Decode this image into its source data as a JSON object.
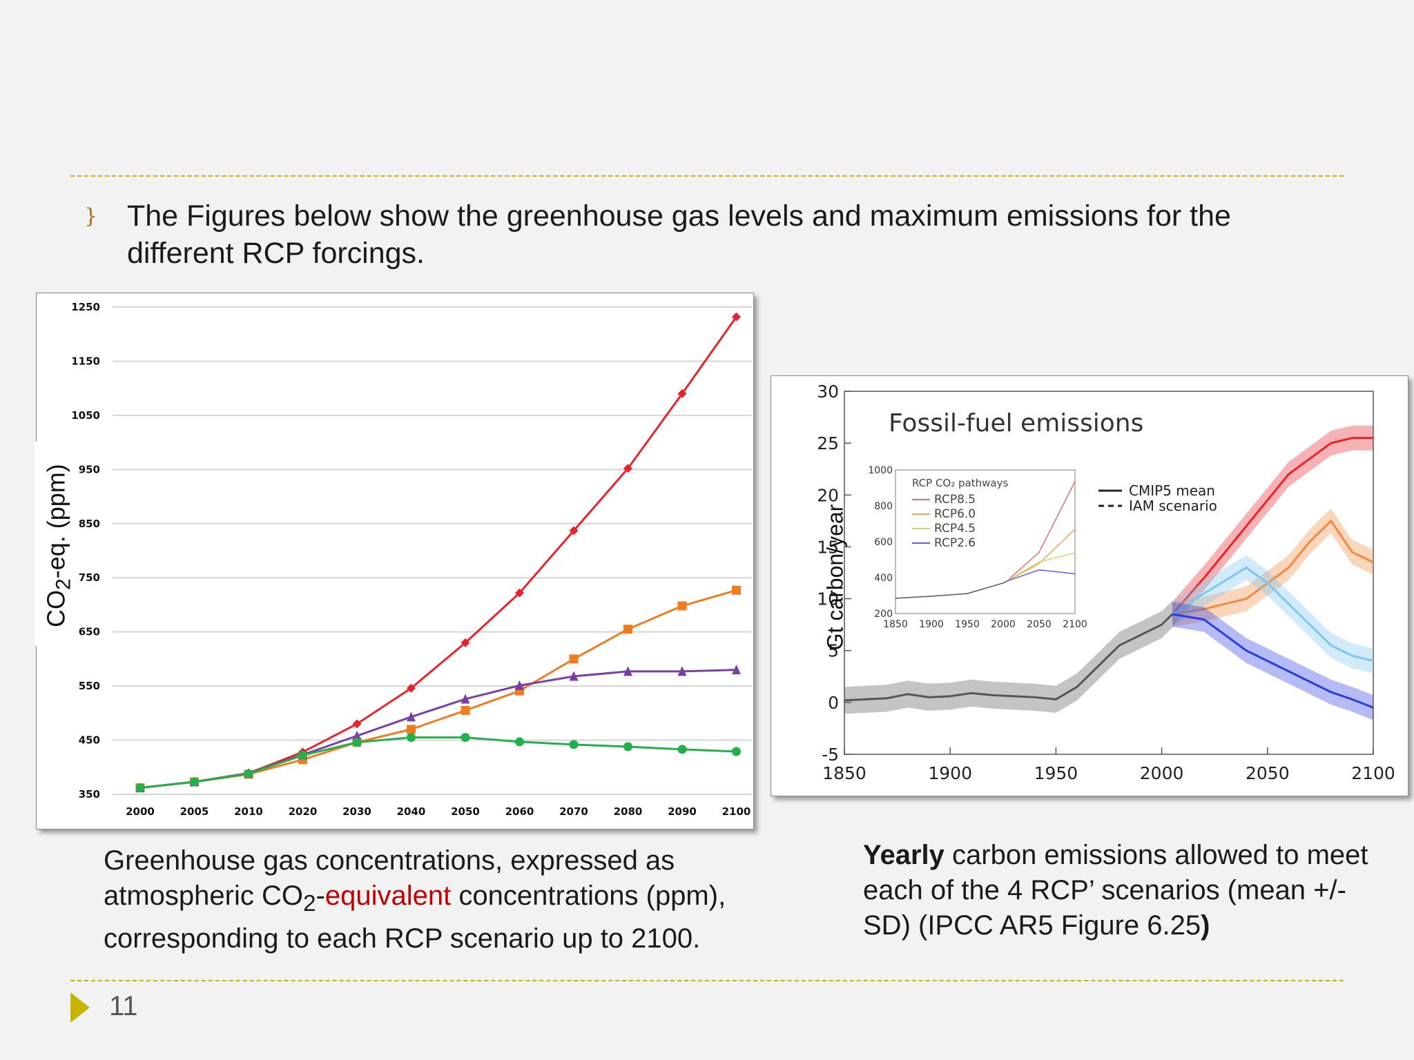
{
  "bullet": {
    "glyph": "}",
    "text": "The Figures below show the greenhouse gas levels and maximum emissions for the different RCP forcings."
  },
  "chart_data": [
    {
      "type": "line",
      "ylabel_main": "CO",
      "ylabel_sub": "2",
      "ylabel_rest": "-eq. (ppm)",
      "x": [
        2000,
        2005,
        2010,
        2020,
        2030,
        2040,
        2050,
        2060,
        2070,
        2080,
        2090,
        2100
      ],
      "x_ticks": [
        "2000",
        "2005",
        "2010",
        "2020",
        "2030",
        "2040",
        "2050",
        "2060",
        "2070",
        "2080",
        "2090",
        "2100"
      ],
      "y_ticks": [
        "1250",
        "1150",
        "1050",
        "950",
        "850",
        "750",
        "650",
        "550",
        "450",
        "350"
      ],
      "ylim": [
        350,
        1250
      ],
      "grid": true,
      "series": [
        {
          "color": "#e8232a",
          "marker": "diamond",
          "values": [
            362,
            373,
            389,
            428,
            480,
            546,
            630,
            722,
            837,
            952,
            1090,
            1232
          ]
        },
        {
          "color": "#f07c1e",
          "marker": "square",
          "values": [
            362,
            373,
            387,
            414,
            446,
            470,
            505,
            541,
            600,
            655,
            698,
            727
          ]
        },
        {
          "color": "#7a3ea8",
          "marker": "triangle",
          "values": [
            362,
            373,
            389,
            423,
            458,
            493,
            526,
            551,
            568,
            577,
            577,
            580
          ]
        },
        {
          "color": "#21b04b",
          "marker": "circle",
          "values": [
            362,
            373,
            388,
            422,
            446,
            455,
            455,
            447,
            442,
            438,
            433,
            429
          ]
        }
      ]
    },
    {
      "type": "line",
      "title": "Fossil-fuel emissions",
      "ylabel": "Gt carbon/year",
      "x_ticks": [
        "1850",
        "1900",
        "1950",
        "2000",
        "2050",
        "2100"
      ],
      "y_ticks": [
        "30",
        "25",
        "20",
        "15",
        "10",
        "5",
        "0",
        "-5"
      ],
      "xlim": [
        1850,
        2100
      ],
      "ylim": [
        -5,
        30
      ],
      "legend": {
        "placement": "top-right",
        "entries": [
          "CMIP5 mean",
          "IAM scenario"
        ]
      },
      "history": {
        "x": [
          1850,
          1860,
          1870,
          1880,
          1890,
          1900,
          1910,
          1920,
          1930,
          1940,
          1950,
          1960,
          1970,
          1980,
          1990,
          2000,
          2005
        ],
        "values": [
          0.2,
          0.3,
          0.4,
          0.8,
          0.5,
          0.6,
          0.9,
          0.7,
          0.6,
          0.5,
          0.3,
          1.5,
          3.5,
          5.5,
          6.5,
          7.5,
          8.5
        ]
      },
      "series": [
        {
          "color": "#e8232a",
          "x": [
            2005,
            2020,
            2040,
            2060,
            2080,
            2090,
            2100
          ],
          "values": [
            8.5,
            12,
            17,
            22,
            25,
            25.5,
            25.5
          ]
        },
        {
          "color": "#f08a40",
          "x": [
            2005,
            2020,
            2040,
            2060,
            2070,
            2080,
            2090,
            2100
          ],
          "values": [
            8.5,
            9,
            10,
            13,
            15.5,
            17.5,
            14.5,
            13.5
          ]
        },
        {
          "color": "#7cc6f2",
          "x": [
            2005,
            2020,
            2040,
            2050,
            2060,
            2070,
            2080,
            2090,
            2100
          ],
          "values": [
            8.5,
            10.5,
            13,
            11.5,
            9.5,
            7.5,
            5.5,
            4.5,
            4
          ]
        },
        {
          "color": "#2b3be0",
          "x": [
            2005,
            2020,
            2030,
            2040,
            2060,
            2080,
            2090,
            2100
          ],
          "values": [
            8.5,
            8,
            6.5,
            5,
            3,
            1,
            0.3,
            -0.5
          ]
        }
      ],
      "inset": {
        "title": "RCP CO₂ pathways",
        "x_ticks": [
          "1850",
          "1900",
          "1950",
          "2000",
          "2050",
          "2100"
        ],
        "y_ticks": [
          "1000",
          "800",
          "600",
          "400",
          "200"
        ],
        "xlim": [
          1850,
          2100
        ],
        "ylim": [
          200,
          1000
        ],
        "entries": [
          "RCP8.5",
          "RCP6.0",
          "RCP4.5",
          "RCP2.6"
        ],
        "history": {
          "x": [
            1850,
            1900,
            1950,
            2000,
            2005
          ],
          "values": [
            285,
            296,
            311,
            370,
            380
          ]
        },
        "series": [
          {
            "color": "#e07070",
            "x": [
              2005,
              2050,
              2100
            ],
            "values": [
              380,
              541,
              936
            ]
          },
          {
            "color": "#f0a060",
            "x": [
              2005,
              2050,
              2100
            ],
            "values": [
              380,
              478,
              670
            ]
          },
          {
            "color": "#e0d060",
            "x": [
              2005,
              2050,
              2100
            ],
            "values": [
              380,
              487,
              538
            ]
          },
          {
            "color": "#6060e0",
            "x": [
              2005,
              2050,
              2100
            ],
            "values": [
              380,
              443,
              421
            ]
          }
        ]
      }
    }
  ],
  "captions": {
    "left_a": "Greenhouse gas concentrations, expressed as atmospheric CO",
    "left_sub": "2",
    "left_dash": "-",
    "left_red": "equivalent",
    "left_b": " concentrations (ppm), corresponding to each RCP scenario up to 2100.",
    "right_bold": "Yearly",
    "right_text": " carbon emissions allowed to meet each of the 4 RCP’ scenarios (mean +/- SD) (IPCC AR5 Figure 6.25",
    "right_end": ")"
  },
  "footer": {
    "slide_number": "11"
  },
  "colors": {
    "accent": "#c8b400",
    "highlight": "#c00000"
  }
}
